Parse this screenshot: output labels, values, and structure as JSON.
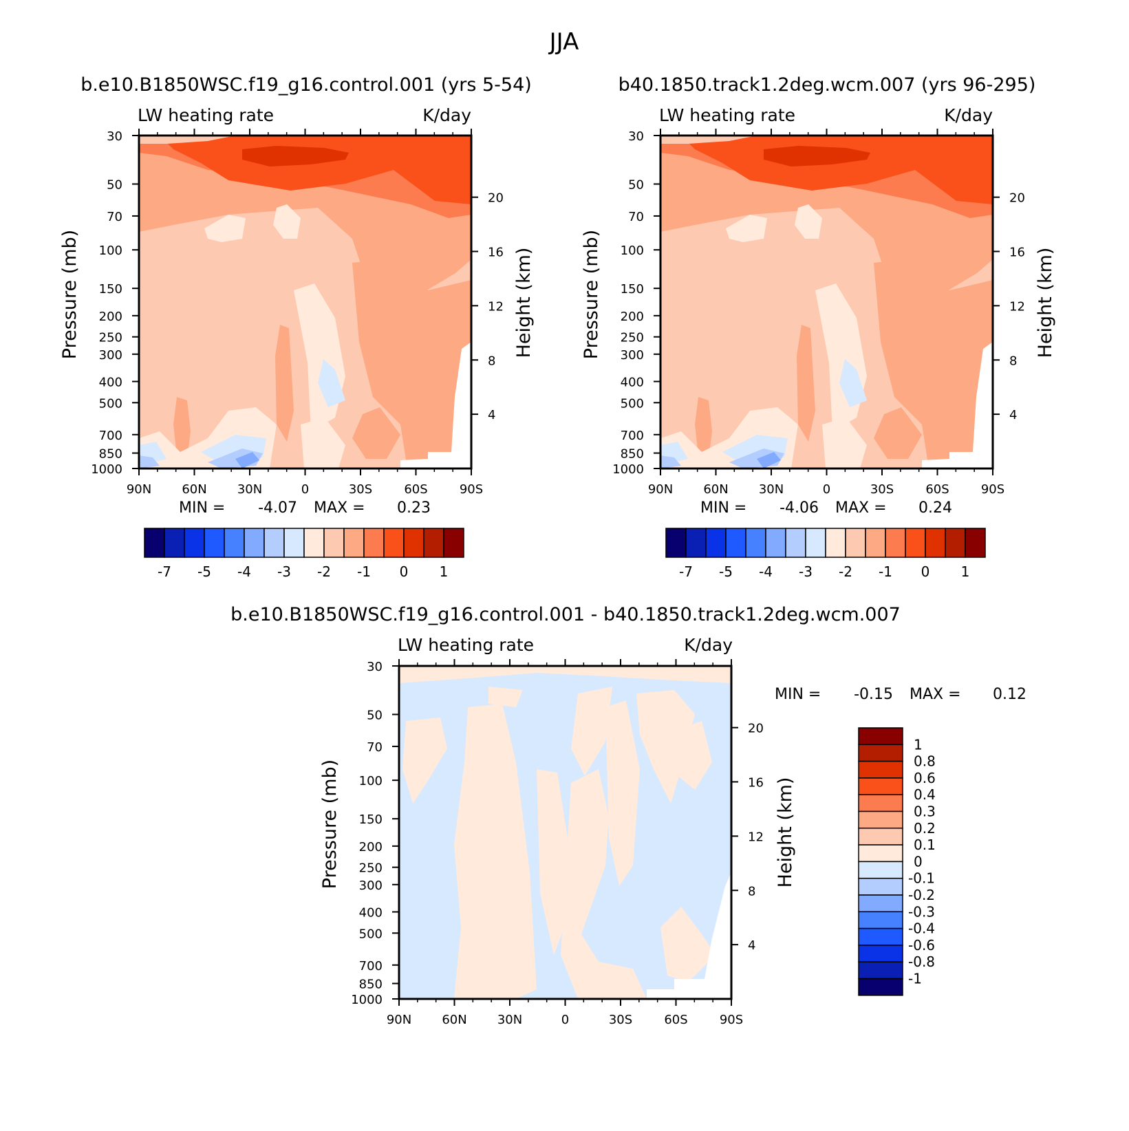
{
  "figure": {
    "title": "JJA"
  },
  "chart_data": [
    {
      "type": "heatmap",
      "case_title": "b.e10.B1850WSC.f19_g16.control.001 (yrs 5-54)",
      "left_label": "LW heating rate",
      "right_label": "K/day",
      "ylabel": "Pressure (mb)",
      "ylabel_right": "Height (km)",
      "x_ticks": [
        "90N",
        "60N",
        "30N",
        "0",
        "30S",
        "60S",
        "90S"
      ],
      "y_ticks": [
        "30",
        "50",
        "70",
        "100",
        "150",
        "200",
        "250",
        "300",
        "400",
        "500",
        "700",
        "850",
        "1000"
      ],
      "height_ticks": [
        "20",
        "16",
        "12",
        "8",
        "4"
      ],
      "min_text": "MIN =",
      "min_value": "-4.07",
      "max_text": "MAX =",
      "max_value": "0.23",
      "colorbar_labels": [
        "-7",
        "-5",
        "-4",
        "-3",
        "-2",
        "-1",
        "0",
        "1"
      ]
    },
    {
      "type": "heatmap",
      "case_title": "b40.1850.track1.2deg.wcm.007 (yrs 96-295)",
      "left_label": "LW heating rate",
      "right_label": "K/day",
      "ylabel": "Pressure (mb)",
      "ylabel_right": "Height (km)",
      "x_ticks": [
        "90N",
        "60N",
        "30N",
        "0",
        "30S",
        "60S",
        "90S"
      ],
      "y_ticks": [
        "30",
        "50",
        "70",
        "100",
        "150",
        "200",
        "250",
        "300",
        "400",
        "500",
        "700",
        "850",
        "1000"
      ],
      "height_ticks": [
        "20",
        "16",
        "12",
        "8",
        "4"
      ],
      "min_text": "MIN =",
      "min_value": "-4.06",
      "max_text": "MAX =",
      "max_value": "0.24",
      "colorbar_labels": [
        "-7",
        "-5",
        "-4",
        "-3",
        "-2",
        "-1",
        "0",
        "1"
      ]
    },
    {
      "type": "heatmap",
      "case_title": "b.e10.B1850WSC.f19_g16.control.001 - b40.1850.track1.2deg.wcm.007",
      "left_label": "LW heating rate",
      "right_label": "K/day",
      "ylabel": "Pressure (mb)",
      "ylabel_right": "Height (km)",
      "x_ticks": [
        "90N",
        "60N",
        "30N",
        "0",
        "30S",
        "60S",
        "90S"
      ],
      "y_ticks": [
        "30",
        "50",
        "70",
        "100",
        "150",
        "200",
        "250",
        "300",
        "400",
        "500",
        "700",
        "850",
        "1000"
      ],
      "height_ticks": [
        "20",
        "16",
        "12",
        "8",
        "4"
      ],
      "min_text": "MIN =",
      "min_value": "-0.15",
      "max_text": "MAX =",
      "max_value": "0.12",
      "colorbar_labels": [
        "1",
        "0.8",
        "0.6",
        "0.4",
        "0.3",
        "0.2",
        "0.1",
        "0",
        "-0.1",
        "-0.2",
        "-0.3",
        "-0.4",
        "-0.6",
        "-0.8",
        "-1"
      ]
    }
  ],
  "colors": {
    "scale": [
      "#08006e",
      "#0a1fb4",
      "#0a32e6",
      "#1e5aff",
      "#4682ff",
      "#82aaff",
      "#b4cdff",
      "#d7e9ff",
      "#ffeadb",
      "#fdcab1",
      "#fca984",
      "#fc7b4f",
      "#fa5019",
      "#e03200",
      "#b41e00",
      "#880000"
    ],
    "diff_neg": "#d7e9ff",
    "diff_pos": "#ffeadb"
  }
}
